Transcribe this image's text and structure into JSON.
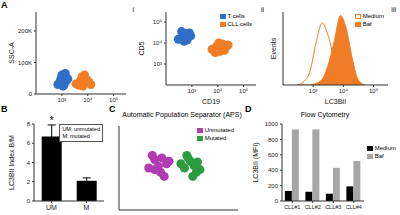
{
  "chart_data": [
    {
      "panel": "A",
      "subpanel": "i",
      "type": "scatter",
      "y_label": "SSC-A",
      "log": "x",
      "xlim": [
        100,
        300000
      ],
      "xticks": [
        {
          "value": 1000,
          "label": "10³"
        },
        {
          "value": 10000,
          "label": "10⁴"
        },
        {
          "value": 100000,
          "label": "10⁵"
        }
      ],
      "ylim": [
        0,
        260000
      ],
      "yticks": [
        0,
        {
          "value": 100000,
          "label": "100K"
        },
        {
          "value": 200000,
          "label": "200K"
        }
      ],
      "series": [
        {
          "color": "#2f6fc7",
          "x": [
            700,
            900,
            1100,
            1300,
            1000,
            800,
            1500,
            1200,
            950,
            1700,
            1100,
            1350
          ],
          "y": [
            30000,
            45000,
            38000,
            52000,
            60000,
            35000,
            42000,
            28000,
            50000,
            48000,
            25000,
            65000
          ]
        },
        {
          "color": "#f07d26",
          "x": [
            3500,
            5000,
            7000,
            9000,
            6000,
            4500,
            11000,
            8000,
            5500,
            13000,
            7500,
            6500
          ],
          "y": [
            32000,
            40000,
            35000,
            45000,
            55000,
            28000,
            38000,
            50000,
            44000,
            30000,
            60000,
            25000
          ]
        }
      ]
    },
    {
      "subpanel": "ii",
      "type": "scatter",
      "x_label": "CD19",
      "y_label": "CD5",
      "log": true,
      "legend": "upper right",
      "xlim": [
        100,
        300000
      ],
      "xticks": [
        {
          "value": 1000,
          "label": "10³"
        },
        {
          "value": 10000,
          "label": "10⁴"
        },
        {
          "value": 100000,
          "label": "10⁵"
        }
      ],
      "ylim": [
        100,
        300000
      ],
      "yticks": [
        {
          "value": 1000,
          "label": "10³"
        },
        {
          "value": 10000,
          "label": "10⁴"
        },
        {
          "value": 100000,
          "label": "10⁵"
        }
      ],
      "series": [
        {
          "name": "T cells",
          "color": "#2f6fc7",
          "x": [
            300,
            450,
            600,
            800,
            500,
            700,
            400,
            900,
            550,
            650
          ],
          "y": [
            15000,
            25000,
            20000,
            30000,
            12000,
            18000,
            35000,
            22000,
            28000,
            14000
          ]
        },
        {
          "name": "CLL cells",
          "color": "#f07d26",
          "x": [
            6000,
            9000,
            12000,
            15000,
            20000,
            8000,
            25000,
            11000,
            14000,
            18000
          ],
          "y": [
            5000,
            7000,
            4000,
            9000,
            6000,
            3500,
            8000,
            10000,
            5500,
            4500
          ]
        }
      ]
    },
    {
      "subpanel": "iii",
      "type": "line",
      "x_label": "LC3BII",
      "y_label": "Events",
      "log": "x",
      "legend": "upper right",
      "tick_labels": "x",
      "xlim": [
        100,
        300000
      ],
      "xticks": [
        {
          "value": 1000,
          "label": "10³"
        },
        {
          "value": 10000,
          "label": "10⁴"
        },
        {
          "value": 100000,
          "label": "10⁵"
        }
      ],
      "ylim": [
        0,
        100
      ],
      "x": [
        300,
        500,
        800,
        1200,
        2000,
        3000,
        5000,
        8000,
        12000,
        20000,
        30000,
        50000
      ],
      "series": [
        {
          "name": "Medium",
          "type": "line",
          "color": "#f07d26",
          "values": [
            0,
            5,
            20,
            55,
            85,
            70,
            35,
            10,
            3,
            0,
            0,
            0
          ]
        },
        {
          "name": "Baf",
          "type": "area",
          "color": "#f07d26",
          "values": [
            0,
            0,
            0,
            2,
            8,
            25,
            60,
            95,
            80,
            35,
            8,
            0
          ]
        }
      ]
    },
    {
      "panel": "B",
      "type": "bar",
      "y_label": "LC3BII Index B/M",
      "categories": [
        "UM",
        "M"
      ],
      "values": [
        6.7,
        2.1
      ],
      "errors": [
        1.2,
        0.3
      ],
      "color": "#000000",
      "ylim": [
        0,
        8
      ],
      "yticks": [
        0,
        2,
        4,
        6,
        8
      ],
      "annotations": [
        {
          "category": "UM",
          "text": "*"
        }
      ],
      "notes": [
        "UM: unmutated",
        "M: mutated"
      ]
    },
    {
      "panel": "C",
      "type": "scatter",
      "title": "Automatic Population Separator (APS)",
      "xlim": [
        0,
        100
      ],
      "ylim": [
        0,
        100
      ],
      "tick_labels": false,
      "legend": "upper right",
      "series": [
        {
          "name": "Unmutated",
          "color": "#b13bb3",
          "x": [
            25,
            30,
            35,
            40,
            28,
            33,
            38,
            42,
            30,
            36
          ],
          "y": [
            50,
            60,
            45,
            55,
            65,
            52,
            40,
            58,
            48,
            62
          ]
        },
        {
          "name": "Mutated",
          "color": "#2d9c3e",
          "x": [
            55,
            60,
            65,
            58,
            63,
            68,
            52,
            62,
            57,
            66
          ],
          "y": [
            50,
            58,
            45,
            62,
            53,
            48,
            55,
            40,
            65,
            57
          ]
        }
      ]
    },
    {
      "panel": "D",
      "type": "bar",
      "title": "Flow Cytometry",
      "y_label": "LC3BII (MFI)",
      "categories": [
        "CLL#1",
        "CLL#2",
        "CLL#3",
        "CLL#4"
      ],
      "legend": "right",
      "ylim": [
        0,
        1000
      ],
      "yticks": [
        0,
        200,
        400,
        600,
        800,
        1000
      ],
      "series": [
        {
          "name": "Medium",
          "color": "#000000",
          "values": [
            130,
            120,
            95,
            190
          ]
        },
        {
          "name": "Baf",
          "color": "#a6a6a6",
          "values": [
            930,
            930,
            430,
            520
          ]
        }
      ]
    }
  ]
}
